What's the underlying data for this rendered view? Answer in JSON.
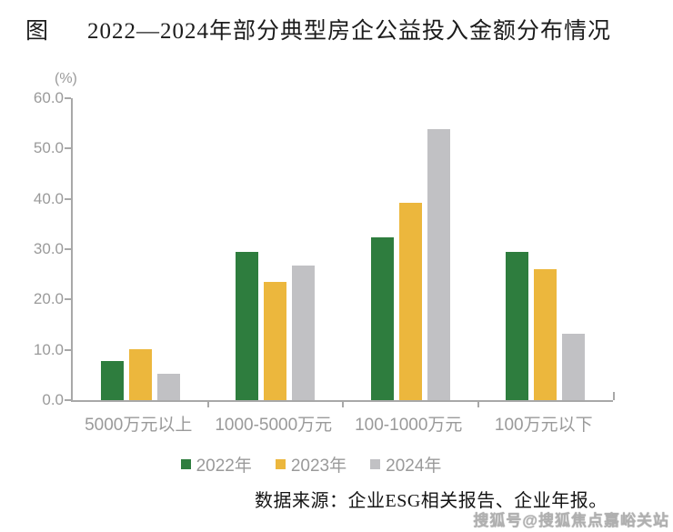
{
  "title": {
    "prefix": "图",
    "text": "2022—2024年部分典型房企公益投入金额分布情况"
  },
  "chart_data": {
    "type": "bar",
    "title": "2022—2024年部分典型房企公益投入金额分布情况",
    "unit_label": "(%)",
    "xlabel": "",
    "ylabel": "%",
    "ylim": [
      0,
      60
    ],
    "ytick_step": 10,
    "ytick_labels": [
      "0.0",
      "10.0",
      "20.0",
      "30.0",
      "40.0",
      "50.0",
      "60.0"
    ],
    "grid": false,
    "legend_position": "bottom",
    "categories": [
      "5000万元以上",
      "1000-5000万元",
      "100-1000万元",
      "100万元以下"
    ],
    "series": [
      {
        "name": "2022年",
        "color": "#2E7D3E",
        "values": [
          7.8,
          29.5,
          32.3,
          29.5
        ]
      },
      {
        "name": "2023年",
        "color": "#ECB73D",
        "values": [
          10.2,
          23.5,
          39.3,
          26.0
        ]
      },
      {
        "name": "2024年",
        "color": "#C1C1C4",
        "values": [
          5.3,
          26.8,
          53.9,
          13.2
        ]
      }
    ]
  },
  "source_note": "数据来源：企业ESG相关报告、企业年报。",
  "watermark": "搜狐号@搜狐焦点嘉峪关站",
  "colors": {
    "axis": "#A8A8A8",
    "label_text": "#9A9A9A",
    "title_text": "#1C1C1C",
    "source_text": "#141414",
    "watermark_text": "#B0B0B0"
  }
}
